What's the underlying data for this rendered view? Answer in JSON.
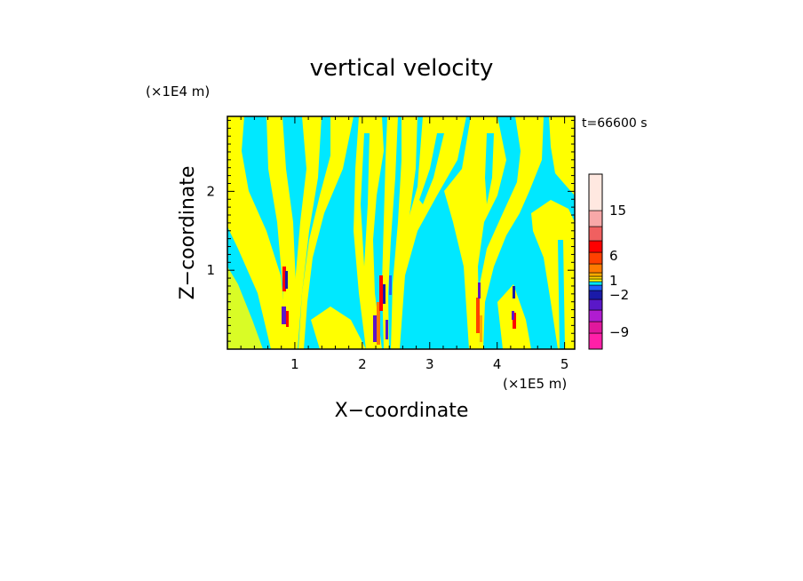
{
  "chart_data": {
    "type": "heatmap",
    "title": "vertical velocity",
    "xlabel": "X−coordinate",
    "ylabel": "Z−coordinate",
    "x_unit": "(×1E5 m)",
    "y_unit": "(×1E4 m)",
    "time_label": "t=66600 s",
    "xlim": [
      0,
      5.15
    ],
    "ylim": [
      0,
      2.95
    ],
    "x_ticks": [
      "1",
      "2",
      "3",
      "4",
      "5"
    ],
    "y_ticks": [
      "1",
      "2"
    ],
    "colorbar": {
      "levels": [
        {
          "color": "#ff20a8"
        },
        {
          "color": "#e0189c"
        },
        {
          "color": "#b01cd0"
        },
        {
          "color": "#5a18c8"
        },
        {
          "color": "#1a1aa8"
        },
        {
          "color": "#2060ff"
        },
        {
          "color": "#00e8ff"
        },
        {
          "color": "#ffff00"
        },
        {
          "color": "#ffd400"
        },
        {
          "color": "#ffaa00"
        },
        {
          "color": "#ff7a00"
        },
        {
          "color": "#ff4000"
        },
        {
          "color": "#ff0000"
        },
        {
          "color": "#f06060"
        },
        {
          "color": "#f8a8a8"
        },
        {
          "color": "#ffe8e0"
        }
      ],
      "tick_labels": [
        "15",
        "6",
        "1",
        "−2",
        "−9"
      ]
    },
    "dominant_colors": {
      "updraft": "#ffff00",
      "downdraft": "#00e8ff"
    },
    "updraft_cores_x": [
      0.88,
      2.28,
      3.72,
      4.22
    ]
  }
}
